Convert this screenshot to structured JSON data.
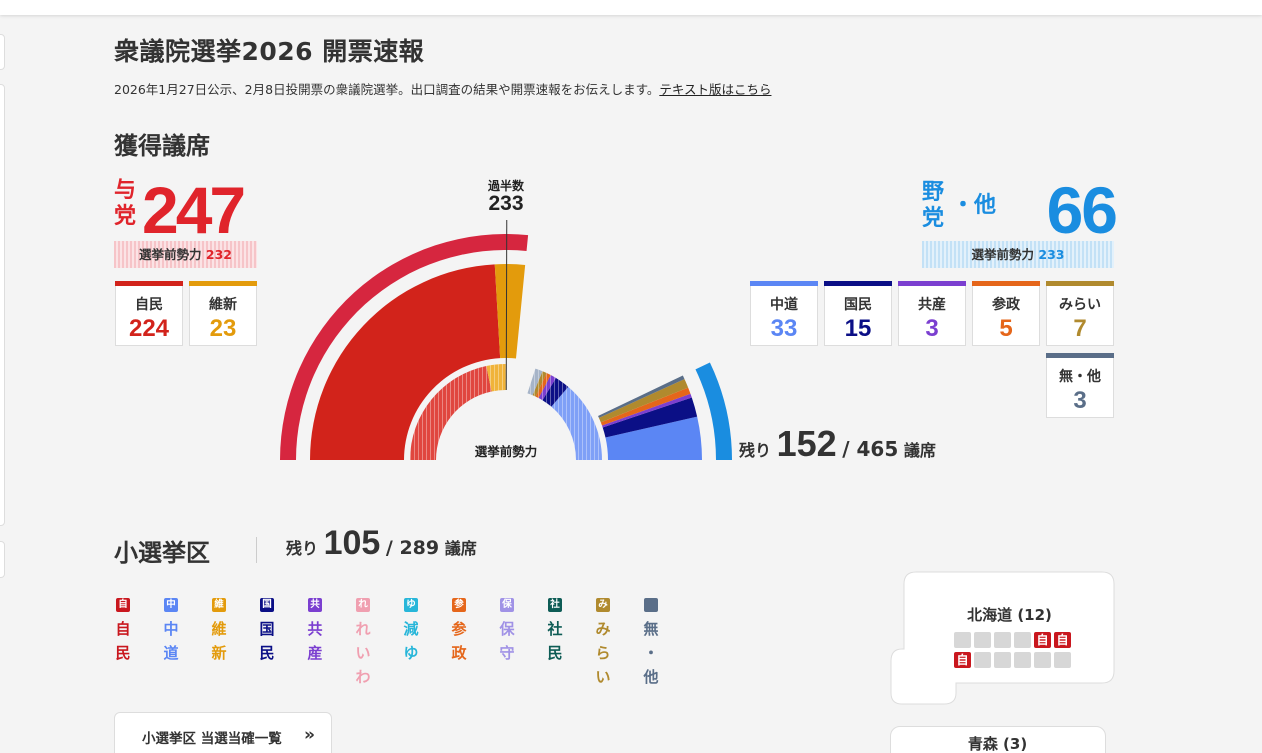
{
  "page": {
    "title": "衆議院選挙2026 開票速報",
    "subtitle": "2026年1月27日公示、2月8日投開票の衆議院選挙。出口調査の結果や開票速報をお伝えします。",
    "text_version_link": "テキスト版はこちら"
  },
  "seats_section": {
    "heading": "獲得議席",
    "ruling": {
      "label": "与党",
      "total": "247",
      "prev_label": "選挙前勢力",
      "prev_value": "232",
      "color": "#e0242b",
      "parties": [
        {
          "name": "自民",
          "seats": "224",
          "color": "#d2231b"
        },
        {
          "name": "維新",
          "seats": "23",
          "color": "#e39b0c"
        }
      ]
    },
    "opposition": {
      "label_1": "野党",
      "label_dot": "・",
      "label_2": "他",
      "total": "66",
      "prev_label": "選挙前勢力",
      "prev_value": "233",
      "color": "#1a8de0",
      "parties": [
        {
          "name": "中道",
          "seats": "33",
          "color": "#5b86f4"
        },
        {
          "name": "国民",
          "seats": "15",
          "color": "#0b0f86"
        },
        {
          "name": "共産",
          "seats": "3",
          "color": "#7b3fd0"
        },
        {
          "name": "参政",
          "seats": "5",
          "color": "#e5661a"
        },
        {
          "name": "みらい",
          "seats": "7",
          "color": "#b08a2e"
        },
        {
          "name": "無・他",
          "seats": "3",
          "color": "#5a6e88"
        }
      ]
    },
    "majority": {
      "label": "過半数",
      "value": "233"
    },
    "chart_center_label": "選挙前勢力",
    "remaining": {
      "label": "残り",
      "value": "152",
      "total": "/ 465",
      "unit": "議席"
    },
    "total_seats": 465
  },
  "chart_data": {
    "type": "half-donut",
    "total": 465,
    "outer_ring": {
      "ruling": 247,
      "opposition": 66
    },
    "middle_ring": [
      {
        "name": "自民",
        "value": 224,
        "color": "#d2231b"
      },
      {
        "name": "維新",
        "value": 23,
        "color": "#e39b0c"
      },
      {
        "name": "中道",
        "value": 33,
        "color": "#5b86f4"
      },
      {
        "name": "国民",
        "value": 15,
        "color": "#0b0f86"
      },
      {
        "name": "共産",
        "value": 3,
        "color": "#7b3fd0"
      },
      {
        "name": "参政",
        "value": 5,
        "color": "#e5661a"
      },
      {
        "name": "みらい",
        "value": 7,
        "color": "#b08a2e"
      },
      {
        "name": "無・他",
        "value": 3,
        "color": "#5a6e88"
      }
    ],
    "majority_line": 233
  },
  "district_section": {
    "heading": "小選挙区",
    "remaining": {
      "label": "残り",
      "value": "105",
      "total": "/ 289",
      "unit": "議席"
    },
    "legend": [
      {
        "abbr": "自",
        "name": "自民",
        "color": "#c9171e"
      },
      {
        "abbr": "中",
        "name": "中道",
        "color": "#5b86f4"
      },
      {
        "abbr": "維",
        "name": "維新",
        "color": "#e39b0c"
      },
      {
        "abbr": "国",
        "name": "国民",
        "color": "#0b0f86"
      },
      {
        "abbr": "共",
        "name": "共産",
        "color": "#7b3fd0"
      },
      {
        "abbr": "れ",
        "name": "れいわ",
        "color": "#f09fb0"
      },
      {
        "abbr": "ゆ",
        "name": "減ゆ",
        "color": "#27b6d9"
      },
      {
        "abbr": "参",
        "name": "参政",
        "color": "#e5661a"
      },
      {
        "abbr": "保",
        "name": "保守",
        "color": "#a092e6"
      },
      {
        "abbr": "社",
        "name": "社民",
        "color": "#0d5c55"
      },
      {
        "abbr": "み",
        "name": "みらい",
        "color": "#b08a2e"
      },
      {
        "abbr": "",
        "name": "無・他",
        "color": "#5a6e88"
      }
    ],
    "list_button": "小選挙区 当選当確一覧",
    "list_button_icon": "double-chevron-right-icon",
    "hokkaido": {
      "title": "北海道 (12)",
      "seats_row1": [
        "",
        "",
        "",
        "",
        "自",
        "自"
      ],
      "seats_row2": [
        "自",
        "",
        "",
        "",
        "",
        ""
      ]
    },
    "aomori": {
      "title": "青森 (3)"
    }
  }
}
